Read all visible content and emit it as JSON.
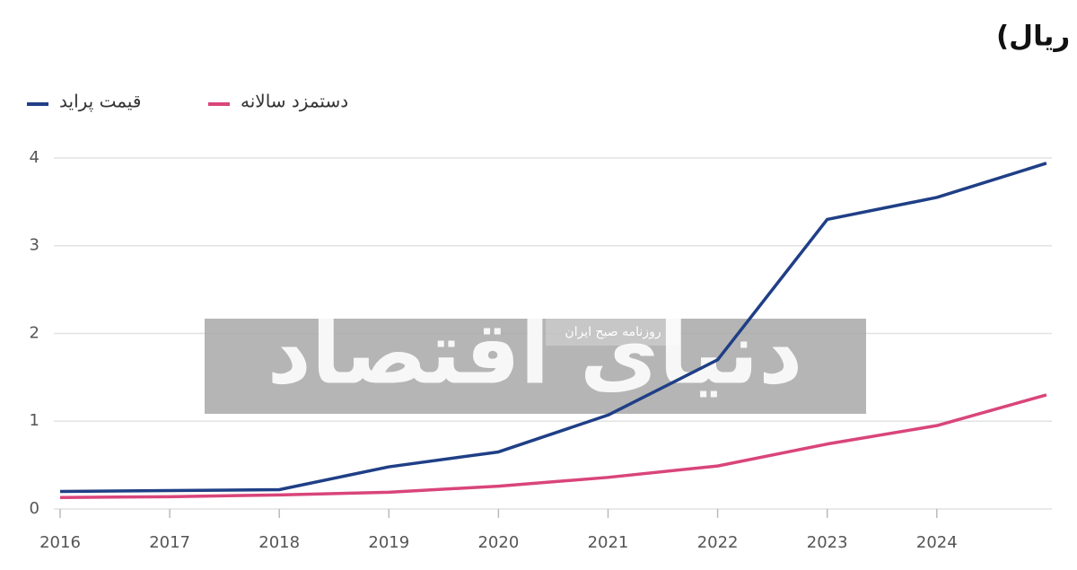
{
  "chart_data": {
    "type": "line",
    "title": "هزینه خرید پراید و حداقل دستمزد سالانه در ایران (میلیارد ریال)",
    "watermark": {
      "brand": "دنیای اقتصاد",
      "tagline": "روزنامه صبح ایران"
    },
    "x": [
      2016,
      2017,
      2018,
      2019,
      2020,
      2021,
      2022,
      2023,
      2024,
      2025
    ],
    "series": [
      {
        "name": "قیمت پراید",
        "color": "#1f3f86",
        "values": [
          0.2,
          0.21,
          0.22,
          0.48,
          0.65,
          1.07,
          1.7,
          3.3,
          3.55,
          3.94
        ]
      },
      {
        "name": "دستمزد سالانه",
        "color": "#d9457a",
        "values": [
          0.13,
          0.14,
          0.16,
          0.19,
          0.26,
          0.36,
          0.49,
          0.74,
          0.95,
          1.3
        ]
      }
    ],
    "xlim": [
      2016,
      2025.05
    ],
    "xticks": [
      2016,
      2017,
      2018,
      2019,
      2020,
      2021,
      2022,
      2023,
      2024
    ],
    "ylim": [
      0,
      4.1
    ],
    "yticks": [
      0,
      1,
      2,
      3,
      4
    ],
    "grid": true
  }
}
